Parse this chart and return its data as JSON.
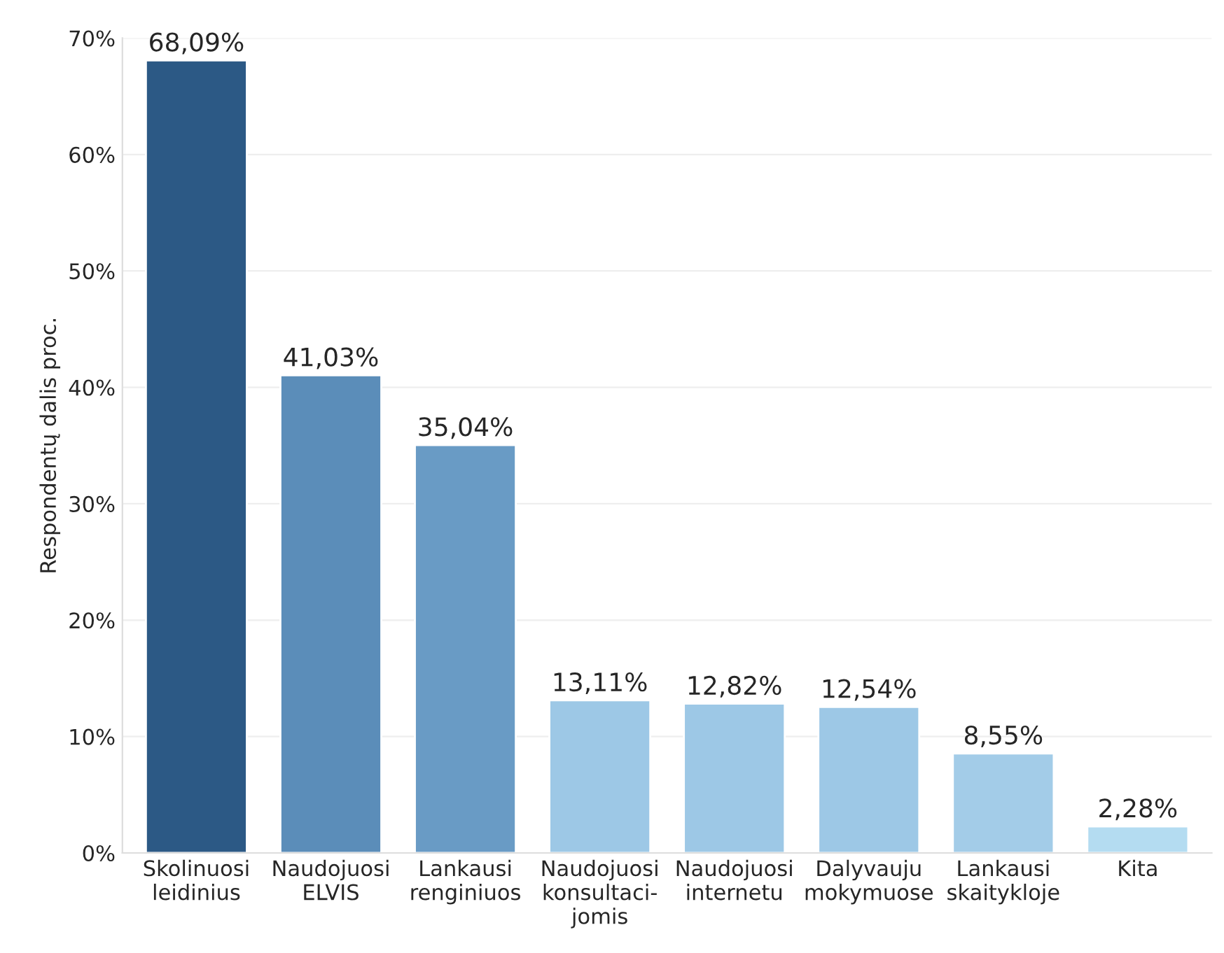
{
  "chart_data": {
    "type": "bar",
    "ylabel": "Respondentų dalis proc.",
    "categories": [
      "Skolinuosi\nleidinius",
      "Naudojuosi\nELVIS",
      "Lankausi\nrenginiuos",
      "Naudojuosi\nkonsultaci-\njomis",
      "Naudojuosi\ninternetu",
      "Dalyvauju\nmokymuose",
      "Lankausi\nskaitykloje",
      "Kita"
    ],
    "values": [
      68.09,
      41.03,
      35.04,
      13.11,
      12.82,
      12.54,
      8.55,
      2.28
    ],
    "value_labels": [
      "68,09%",
      "41,03%",
      "35,04%",
      "13,11%",
      "12,82%",
      "12,54%",
      "8,55%",
      "2,28%"
    ],
    "colors": [
      "#2c5985",
      "#5b8db9",
      "#699bc5",
      "#9dc8e6",
      "#9dc8e6",
      "#9dc8e6",
      "#a3cce8",
      "#b4dcf1"
    ],
    "ylim": [
      0,
      70
    ],
    "yticks": [
      {
        "value": 0,
        "label": "0%"
      },
      {
        "value": 10,
        "label": "10%"
      },
      {
        "value": 20,
        "label": "20%"
      },
      {
        "value": 30,
        "label": "30%"
      },
      {
        "value": 40,
        "label": "40%"
      },
      {
        "value": 50,
        "label": "50%"
      },
      {
        "value": 60,
        "label": "60%"
      },
      {
        "value": 70,
        "label": "70%"
      }
    ],
    "grid": "y"
  }
}
